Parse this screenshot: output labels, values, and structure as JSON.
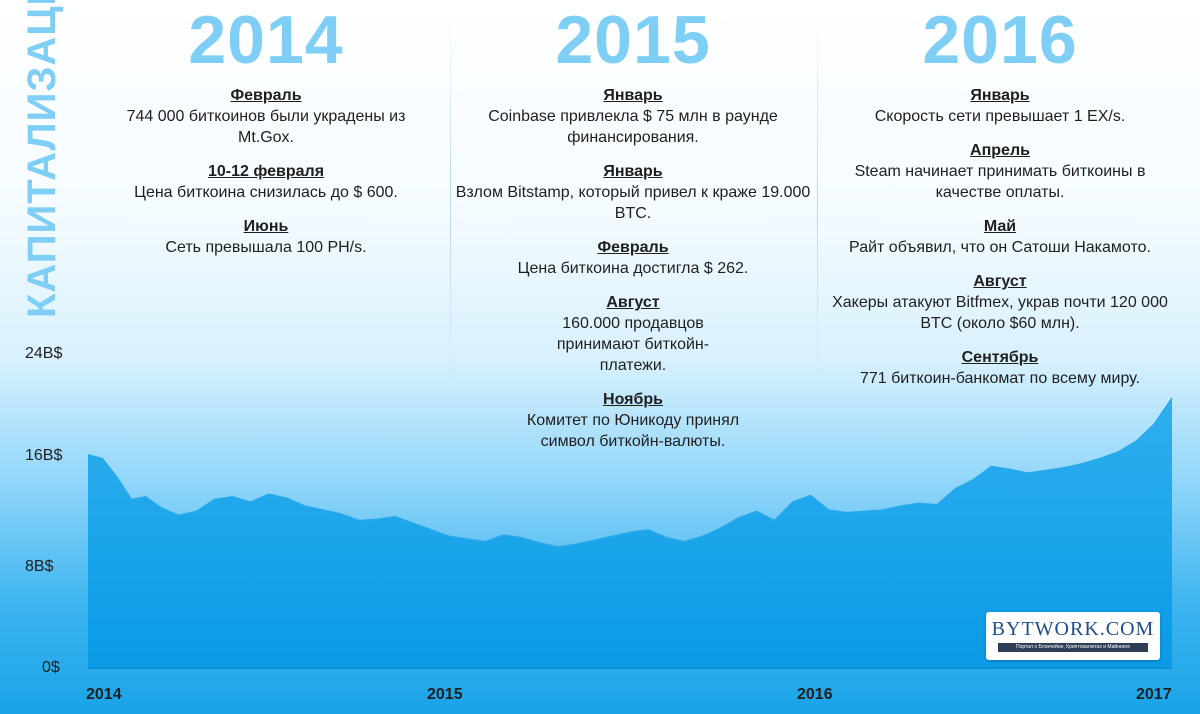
{
  "side_title": "КАПИТАЛИЗАЦИЯ",
  "columns": [
    {
      "year": "2014",
      "events": [
        {
          "month": "Февраль",
          "text": "744 000 биткоинов были украдены из Mt.Gox."
        },
        {
          "month": "10-12 февраля",
          "text": "Цена биткоина снизилась до $ 600."
        },
        {
          "month": "Июнь",
          "text": "Сеть превышала 100 PH/s."
        }
      ]
    },
    {
      "year": "2015",
      "events": [
        {
          "month": "Январь",
          "text": "Coinbase привлекла $ 75 млн в раунде финансирования."
        },
        {
          "month": "Январь",
          "text": "Взлом Bitstamp, который привел к краже 19.000 BTC."
        },
        {
          "month": "Февраль",
          "text": "Цена биткоина достигла $ 262."
        },
        {
          "month": "Август",
          "text": "160.000 продавцов принимают биткойн-платежи."
        },
        {
          "month": "Ноябрь",
          "text": "Комитет по Юникоду принял символ биткойн-валюты."
        }
      ]
    },
    {
      "year": "2016",
      "events": [
        {
          "month": "Январь",
          "text": "Скорость сети превышает 1 EX/s."
        },
        {
          "month": "Апрель",
          "text": "Steam начинает принимать биткоины в качестве оплаты."
        },
        {
          "month": "Май",
          "text": "Райт объявил, что он Сатоши Накамото."
        },
        {
          "month": "Август",
          "text": "Хакеры атакуют Bitfmex, украв почти 120 000 BTC (около $60 млн)."
        },
        {
          "month": "Сентябрь",
          "text": "771 биткоин-банкомат по всему миру."
        }
      ]
    }
  ],
  "logo": {
    "name": "BYTWORK.COM",
    "tagline": "Портал о Блокчейне, Криптовалютах и Майнинге"
  },
  "chart_data": {
    "type": "area",
    "ylabel": "КАПИТАЛИЗАЦИЯ",
    "y_ticks": [
      "0$",
      "8B$",
      "16B$",
      "24B$"
    ],
    "y_tick_values": [
      0,
      8,
      16,
      24
    ],
    "x_ticks": [
      "2014",
      "2015",
      "2016",
      "2017"
    ],
    "x_tick_values": [
      2014,
      2015,
      2016,
      2017
    ],
    "ylim": [
      0,
      24
    ],
    "xlim": [
      2014,
      2017
    ],
    "grid": false,
    "series": [
      {
        "x": [
          2014.0,
          2014.04,
          2014.08,
          2014.12,
          2014.16,
          2014.2,
          2014.25,
          2014.3,
          2014.35,
          2014.4,
          2014.45,
          2014.5,
          2014.55,
          2014.6,
          2014.65,
          2014.7,
          2014.75,
          2014.8,
          2014.85,
          2014.9,
          2014.95,
          2015.0,
          2015.05,
          2015.1,
          2015.15,
          2015.2,
          2015.25,
          2015.3,
          2015.35,
          2015.4,
          2015.45,
          2015.5,
          2015.55,
          2015.6,
          2015.65,
          2015.7,
          2015.75,
          2015.8,
          2015.85,
          2015.9,
          2015.95,
          2016.0,
          2016.05,
          2016.1,
          2016.15,
          2016.2,
          2016.25,
          2016.3,
          2016.35,
          2016.4,
          2016.45,
          2016.5,
          2016.55,
          2016.6,
          2016.65,
          2016.7,
          2016.75,
          2016.8,
          2016.85,
          2016.9,
          2016.95,
          2017.0
        ],
        "values": [
          16.2,
          15.9,
          14.5,
          12.8,
          13.0,
          12.2,
          11.6,
          11.9,
          12.8,
          13.0,
          12.6,
          13.2,
          12.9,
          12.3,
          12.0,
          11.7,
          11.2,
          11.3,
          11.5,
          11.0,
          10.5,
          10.0,
          9.8,
          9.6,
          10.1,
          9.9,
          9.5,
          9.2,
          9.4,
          9.7,
          10.0,
          10.3,
          10.5,
          9.9,
          9.6,
          10.0,
          10.6,
          11.4,
          11.9,
          11.2,
          12.6,
          13.1,
          12.0,
          11.8,
          11.9,
          12.0,
          12.3,
          12.5,
          12.4,
          13.6,
          14.3,
          15.3,
          15.1,
          14.8,
          15.0,
          15.2,
          15.5,
          15.9,
          16.4,
          17.2,
          18.5,
          20.5
        ]
      }
    ]
  }
}
